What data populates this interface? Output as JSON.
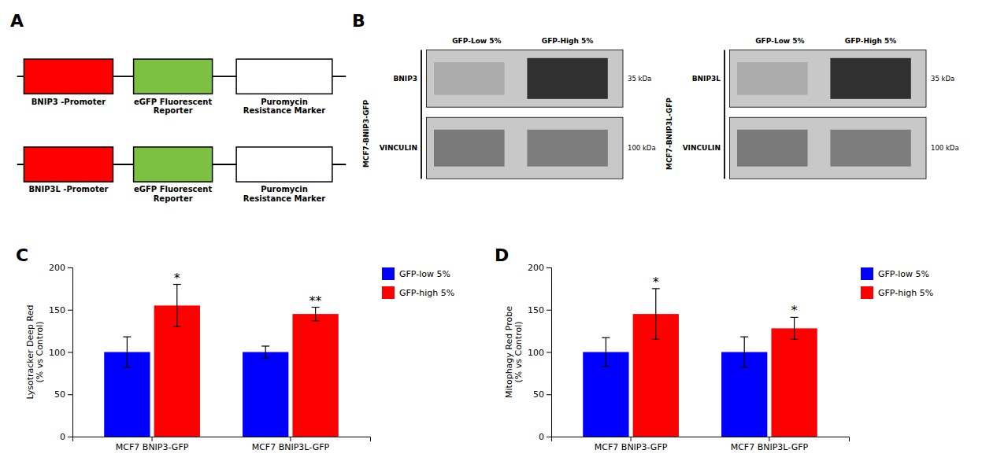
{
  "chart_data": [
    {
      "type": "diagram",
      "title": "A",
      "series": [
        {
          "categories": [
            "BNIP3 -Promoter",
            "eGFP Fluorescent\nReporter",
            "Puromycin\nResistance Marker"
          ],
          "colors": [
            "#FF0000",
            "#7DC142",
            "#FFFFFF"
          ]
        },
        {
          "categories": [
            "BNIP3L -Promoter",
            "eGFP Fluorescent\nReporter",
            "Puromycin\nResistance Marker"
          ],
          "colors": [
            "#FF0000",
            "#7DC142",
            "#FFFFFF"
          ]
        }
      ]
    },
    {
      "type": "western_blot",
      "title": "B",
      "ylabel": "MCF7-BNIP3-GFP",
      "categories": [
        "GFP-Low 5%",
        "GFP-High 5%"
      ],
      "series": [
        {
          "name": "BNIP3",
          "annotations": [
            "35 kDa"
          ]
        },
        {
          "name": "VINCULIN",
          "annotations": [
            "100 kDa"
          ]
        }
      ]
    },
    {
      "type": "western_blot",
      "ylabel": "MCF7-BNIP3L-GFP",
      "categories": [
        "GFP-Low 5%",
        "GFP-High 5%"
      ],
      "series": [
        {
          "name": "BNIP3L",
          "annotations": [
            "35 kDa"
          ]
        },
        {
          "name": "VINCULIN",
          "annotations": [
            "100 kDa"
          ]
        }
      ]
    },
    {
      "type": "bar",
      "title": "C",
      "ylabel": "Lysotracker Deep Red\n(% vs Control)",
      "categories": [
        "MCF7 BNIP3-GFP",
        "MCF7 BNIP3L-GFP"
      ],
      "series": [
        {
          "name": "GFP-low 5%",
          "color": "#0000FF",
          "values": [
            100,
            100
          ],
          "errors": [
            18,
            7
          ]
        },
        {
          "name": "GFP-high 5%",
          "color": "#FF0000",
          "values": [
            155,
            145
          ],
          "errors": [
            25,
            8
          ],
          "annotations": [
            "*",
            "**"
          ]
        }
      ],
      "ylim": [
        0,
        200
      ],
      "yticks": [
        0,
        50,
        100,
        150,
        200
      ],
      "grid": false,
      "legend": "right"
    },
    {
      "type": "bar",
      "title": "D",
      "ylabel": "Mitophagy Red Probe\n(% vs Control)",
      "categories": [
        "MCF7 BNIP3-GFP",
        "MCF7 BNIP3L-GFP"
      ],
      "series": [
        {
          "name": "GFP-low 5%",
          "color": "#0000FF",
          "values": [
            100,
            100
          ],
          "errors": [
            17,
            18
          ]
        },
        {
          "name": "GFP-high 5%",
          "color": "#FF0000",
          "values": [
            145,
            128
          ],
          "errors": [
            30,
            13
          ],
          "annotations": [
            "*",
            "*"
          ]
        }
      ],
      "ylim": [
        0,
        200
      ],
      "yticks": [
        0,
        50,
        100,
        150,
        200
      ],
      "grid": false,
      "legend": "right"
    }
  ]
}
